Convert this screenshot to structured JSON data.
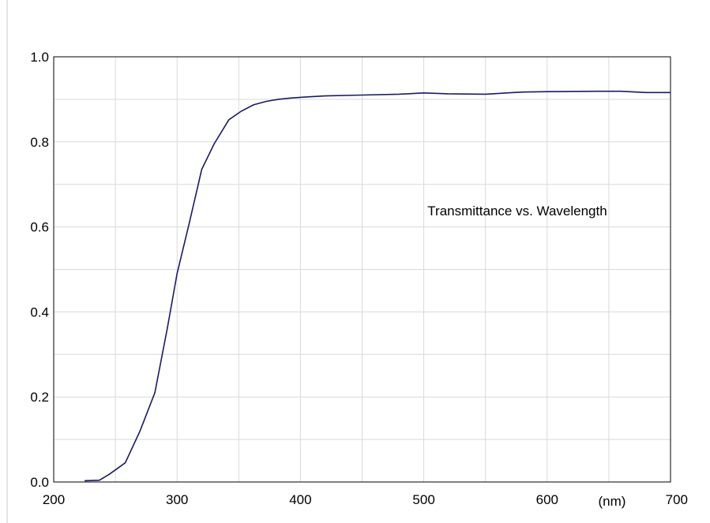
{
  "chart_data": {
    "type": "line",
    "annotation": "Transmittance vs. Wavelength",
    "x_unit": "(nm)",
    "xlim": [
      200,
      700
    ],
    "ylim": [
      0.0,
      1.0
    ],
    "x_ticks": [
      200,
      300,
      400,
      500,
      600,
      700
    ],
    "x_tick_labels": [
      "200",
      "300",
      "400",
      "500",
      "600",
      "700"
    ],
    "y_ticks": [
      0.0,
      0.2,
      0.4,
      0.6,
      0.8,
      1.0
    ],
    "y_tick_labels": [
      "0.0",
      "0.2",
      "0.4",
      "0.6",
      "0.8",
      "1.0"
    ],
    "x_minor_gridlines": [
      250,
      350,
      450,
      550,
      650
    ],
    "y_minor_gridlines": [
      0.1,
      0.3,
      0.5,
      0.7,
      0.9
    ],
    "grid": true,
    "legend": "none",
    "colors": {
      "line": "#1a1a66",
      "grid": "#d9d9d9",
      "axis": "#000000",
      "edge": "#c8c8c8"
    },
    "series": [
      {
        "x": [
          225,
          237,
          245,
          258,
          270,
          282,
          292,
          300,
          310,
          320,
          330,
          342,
          352,
          362,
          372,
          382,
          392,
          402,
          420,
          450,
          480,
          500,
          520,
          550,
          580,
          600,
          640,
          660,
          680,
          700
        ],
        "y": [
          0.003,
          0.004,
          0.018,
          0.045,
          0.12,
          0.21,
          0.36,
          0.49,
          0.61,
          0.735,
          0.795,
          0.852,
          0.872,
          0.887,
          0.895,
          0.9,
          0.903,
          0.905,
          0.908,
          0.91,
          0.912,
          0.915,
          0.913,
          0.912,
          0.917,
          0.918,
          0.919,
          0.919,
          0.916,
          0.916
        ]
      }
    ]
  }
}
